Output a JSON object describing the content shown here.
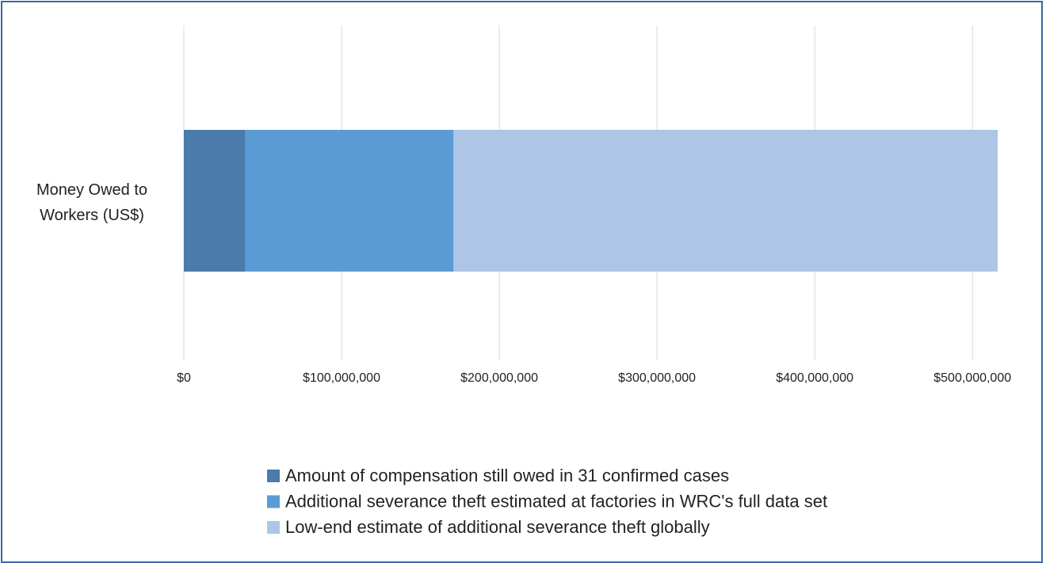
{
  "chart_data": {
    "type": "stacked-bar-horizontal",
    "categories": [
      "Money Owed to Workers (US$)"
    ],
    "series": [
      {
        "name": "Amount of compensation still owed in 31 confirmed cases",
        "color": "#4a7bab",
        "values": [
          39000000
        ]
      },
      {
        "name": "Additional severance theft estimated at factories in WRC's full data set",
        "color": "#5b9bd5",
        "values": [
          132000000
        ]
      },
      {
        "name": "Low-end estimate of additional severance theft globally",
        "color": "#adc6e6",
        "values": [
          345000000
        ]
      }
    ],
    "xlim": [
      0,
      520000000
    ],
    "xticks": [
      {
        "value": 0,
        "label": "$0"
      },
      {
        "value": 100000000,
        "label": "$100,000,000"
      },
      {
        "value": 200000000,
        "label": "$200,000,000"
      },
      {
        "value": 300000000,
        "label": "$300,000,000"
      },
      {
        "value": 400000000,
        "label": "$400,000,000"
      },
      {
        "value": 500000000,
        "label": "$500,000,000"
      }
    ],
    "grid": true,
    "legend": "bottom"
  }
}
